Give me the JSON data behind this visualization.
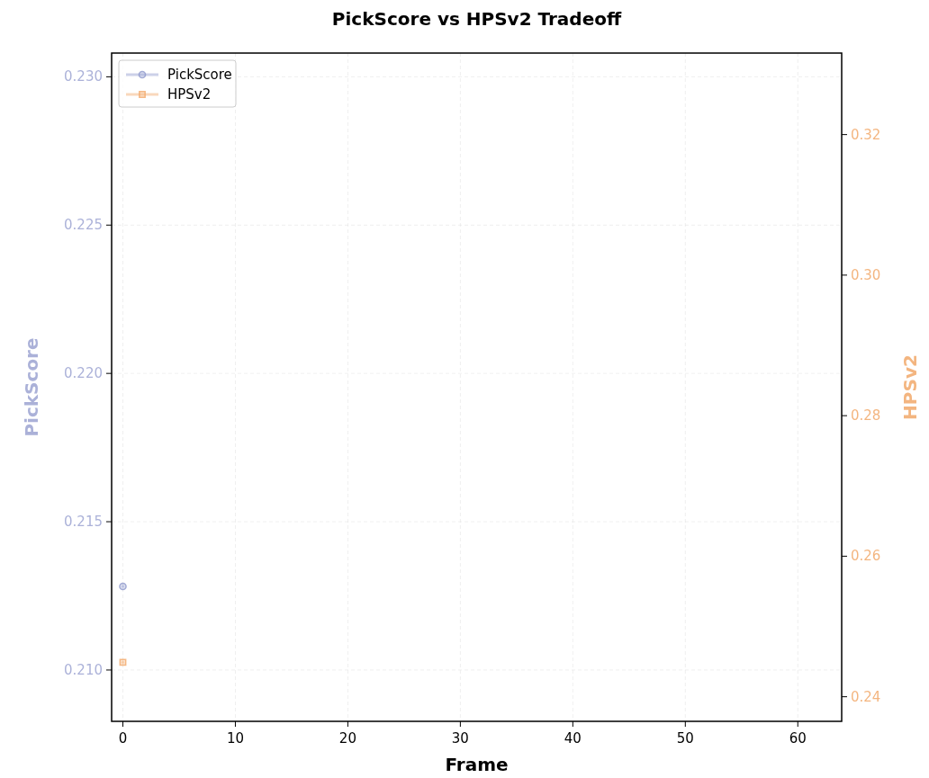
{
  "chart_data": {
    "type": "line",
    "title": "PickScore vs HPSv2 Tradeoff",
    "xlabel": "Frame",
    "ylabel": "PickScore",
    "y2label": "HPSv2",
    "x": [
      0
    ],
    "series": [
      {
        "name": "PickScore",
        "color": "#8f98cc",
        "values": [
          0.21282
        ],
        "marker": "circle"
      },
      {
        "name": "HPSv2",
        "color": "#f2a96a",
        "values": [
          0.2449
        ],
        "marker": "square",
        "axis": "y2"
      }
    ],
    "xlim": [
      -1,
      63.9
    ],
    "xticks": [
      0,
      10,
      20,
      30,
      40,
      50,
      60
    ],
    "ylim": [
      0.20827,
      0.2308
    ],
    "yticks": [
      {
        "value": 0.21,
        "label": "0.210"
      },
      {
        "value": 0.215,
        "label": "0.215"
      },
      {
        "value": 0.22,
        "label": "0.220"
      },
      {
        "value": 0.225,
        "label": "0.225"
      },
      {
        "value": 0.23,
        "label": "0.230"
      }
    ],
    "y2lim": [
      0.2365,
      0.3316
    ],
    "y2ticks": [
      {
        "value": 0.24,
        "label": "0.24"
      },
      {
        "value": 0.26,
        "label": "0.26"
      },
      {
        "value": 0.28,
        "label": "0.28"
      },
      {
        "value": 0.3,
        "label": "0.30"
      },
      {
        "value": 0.32,
        "label": "0.32"
      }
    ],
    "grid": true,
    "legend": "top left",
    "line_style": "solid"
  }
}
